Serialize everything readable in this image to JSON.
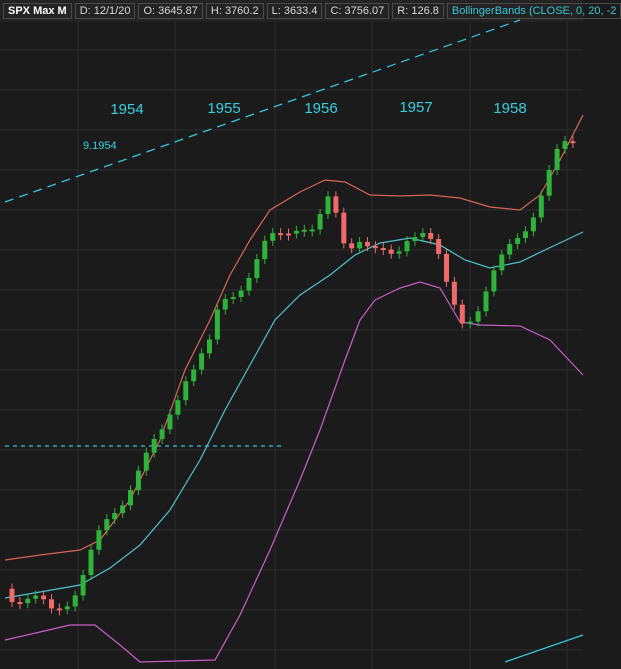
{
  "header": {
    "symbol": "SPX Max M",
    "fields": [
      "D: 12/1/20",
      "O: 3645.87",
      "H: 3760.2",
      "L: 3633.4",
      "C: 3756.07",
      "R: 126.8"
    ],
    "study": "BollingerBands (CLOSE, 0, 20, -2"
  },
  "year_labels": [
    "1954",
    "1955",
    "1956",
    "1957",
    "1958"
  ],
  "annotation": "9.1954"
}
